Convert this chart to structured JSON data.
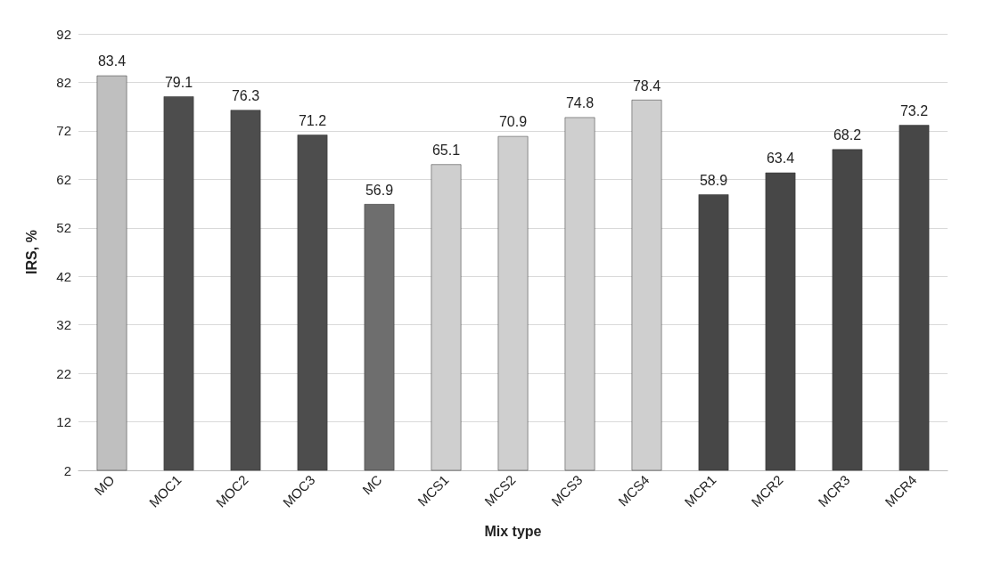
{
  "chart_data": {
    "type": "bar",
    "xlabel": "Mix type",
    "ylabel": "IRS, %",
    "categories": [
      "MO",
      "MOC1",
      "MOC2",
      "MOC3",
      "MC",
      "MCS1",
      "MCS2",
      "MCS3",
      "MCS4",
      "MCR1",
      "MCR2",
      "MCR3",
      "MCR4"
    ],
    "values": [
      83.4,
      79.1,
      76.3,
      71.2,
      56.9,
      65.1,
      70.9,
      74.8,
      78.4,
      58.9,
      63.4,
      68.2,
      73.2
    ],
    "colors": [
      "#bfbfbf",
      "#4d4d4d",
      "#4d4d4d",
      "#4d4d4d",
      "#6e6e6e",
      "#cfcfcf",
      "#cfcfcf",
      "#cfcfcf",
      "#cfcfcf",
      "#474747",
      "#474747",
      "#474747",
      "#474747"
    ],
    "ylim": [
      2,
      92
    ],
    "yticks": [
      2,
      12,
      22,
      32,
      42,
      52,
      62,
      72,
      82,
      92
    ],
    "grid": "y",
    "data_labels": true
  }
}
